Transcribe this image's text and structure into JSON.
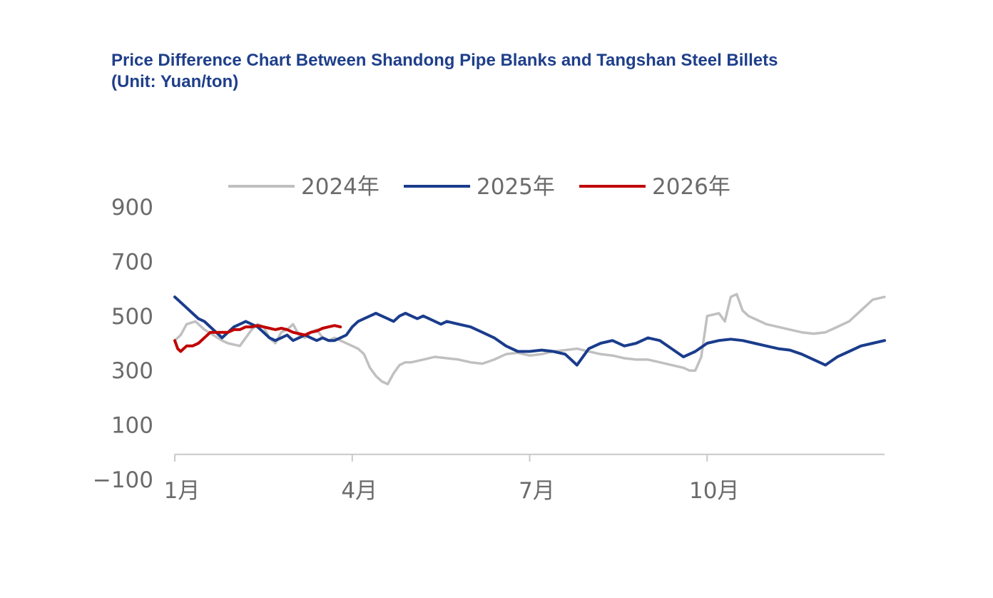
{
  "title": {
    "line1": "Price Difference Chart Between Shandong Pipe Blanks and Tangshan Steel Billets",
    "line2": "(Unit: Yuan/ton)"
  },
  "chart_data": {
    "type": "line",
    "title": "Price Difference Chart Between Shandong Pipe Blanks and Tangshan Steel Billets (Unit: Yuan/ton)",
    "ylim": [
      -100,
      900
    ],
    "yticks": [
      "900",
      "700",
      "500",
      "300",
      "100",
      "−100"
    ],
    "ytick_values": [
      900,
      700,
      500,
      300,
      100,
      -100
    ],
    "xlim": [
      1,
      13
    ],
    "xticks": [
      "1月",
      "4月",
      "7月",
      "10月"
    ],
    "xtick_values": [
      1,
      4,
      7,
      10
    ],
    "grid": false,
    "legend_position": "top",
    "series": [
      {
        "name": "2024年",
        "color": "#c0c0c0",
        "x": [
          1.0,
          1.1,
          1.2,
          1.35,
          1.5,
          1.65,
          1.8,
          1.9,
          2.0,
          2.1,
          2.2,
          2.3,
          2.4,
          2.5,
          2.6,
          2.7,
          2.8,
          2.9,
          3.0,
          3.1,
          3.2,
          3.3,
          3.4,
          3.5,
          3.6,
          3.7,
          3.8,
          3.9,
          4.0,
          4.1,
          4.2,
          4.3,
          4.4,
          4.5,
          4.6,
          4.7,
          4.8,
          4.9,
          5.0,
          5.2,
          5.4,
          5.6,
          5.8,
          6.0,
          6.2,
          6.4,
          6.6,
          6.8,
          7.0,
          7.2,
          7.4,
          7.6,
          7.8,
          8.0,
          8.2,
          8.4,
          8.6,
          8.8,
          9.0,
          9.2,
          9.4,
          9.6,
          9.7,
          9.8,
          9.9,
          10.0,
          10.2,
          10.3,
          10.4,
          10.5,
          10.6,
          10.7,
          10.8,
          11.0,
          11.2,
          11.4,
          11.6,
          11.8,
          12.0,
          12.2,
          12.4,
          12.6,
          12.8,
          13.0
        ],
        "y": [
          410,
          430,
          470,
          480,
          450,
          430,
          410,
          400,
          395,
          390,
          420,
          450,
          470,
          460,
          420,
          400,
          440,
          450,
          470,
          430,
          420,
          440,
          450,
          420,
          410,
          420,
          410,
          400,
          390,
          380,
          360,
          310,
          280,
          260,
          250,
          290,
          320,
          330,
          330,
          340,
          350,
          345,
          340,
          330,
          325,
          340,
          360,
          365,
          355,
          360,
          370,
          375,
          380,
          370,
          360,
          355,
          345,
          340,
          340,
          330,
          320,
          310,
          300,
          300,
          350,
          500,
          510,
          480,
          570,
          580,
          520,
          500,
          490,
          470,
          460,
          450,
          440,
          435,
          440,
          460,
          480,
          520,
          560,
          570
        ]
      },
      {
        "name": "2025年",
        "color": "#1a3c8c",
        "x": [
          1.0,
          1.1,
          1.2,
          1.3,
          1.4,
          1.5,
          1.6,
          1.7,
          1.8,
          1.9,
          2.0,
          2.1,
          2.2,
          2.3,
          2.4,
          2.5,
          2.6,
          2.7,
          2.8,
          2.9,
          3.0,
          3.1,
          3.2,
          3.3,
          3.4,
          3.5,
          3.6,
          3.7,
          3.8,
          3.9,
          4.0,
          4.1,
          4.2,
          4.3,
          4.4,
          4.5,
          4.6,
          4.7,
          4.8,
          4.9,
          5.0,
          5.1,
          5.2,
          5.3,
          5.4,
          5.5,
          5.6,
          5.8,
          6.0,
          6.2,
          6.4,
          6.6,
          6.8,
          7.0,
          7.2,
          7.4,
          7.6,
          7.7,
          7.8,
          7.9,
          8.0,
          8.2,
          8.4,
          8.6,
          8.8,
          9.0,
          9.2,
          9.4,
          9.6,
          9.8,
          10.0,
          10.2,
          10.4,
          10.6,
          10.8,
          11.0,
          11.2,
          11.4,
          11.6,
          11.8,
          12.0,
          12.2,
          12.4,
          12.6,
          12.8,
          13.0
        ],
        "y": [
          570,
          550,
          530,
          510,
          490,
          480,
          460,
          440,
          420,
          440,
          460,
          470,
          480,
          470,
          460,
          440,
          420,
          410,
          420,
          430,
          410,
          420,
          430,
          420,
          410,
          420,
          410,
          410,
          420,
          430,
          460,
          480,
          490,
          500,
          510,
          500,
          490,
          480,
          500,
          510,
          500,
          490,
          500,
          490,
          480,
          470,
          480,
          470,
          460,
          440,
          420,
          390,
          370,
          370,
          375,
          370,
          360,
          340,
          320,
          350,
          380,
          400,
          410,
          390,
          400,
          420,
          410,
          380,
          350,
          370,
          400,
          410,
          415,
          410,
          400,
          390,
          380,
          375,
          360,
          340,
          320,
          350,
          370,
          390,
          400,
          410
        ]
      },
      {
        "name": "2026年",
        "color": "#c00000",
        "x": [
          1.0,
          1.05,
          1.1,
          1.15,
          1.2,
          1.3,
          1.4,
          1.5,
          1.6,
          1.7,
          1.8,
          1.9,
          2.0,
          2.1,
          2.2,
          2.3,
          2.4,
          2.5,
          2.6,
          2.7,
          2.8,
          2.9,
          3.0,
          3.1,
          3.2,
          3.3,
          3.4,
          3.5,
          3.6,
          3.7,
          3.8
        ],
        "y": [
          410,
          380,
          370,
          380,
          390,
          390,
          400,
          420,
          440,
          440,
          440,
          440,
          450,
          450,
          460,
          460,
          465,
          460,
          455,
          450,
          455,
          450,
          440,
          435,
          430,
          440,
          445,
          455,
          460,
          465,
          460
        ]
      }
    ]
  }
}
